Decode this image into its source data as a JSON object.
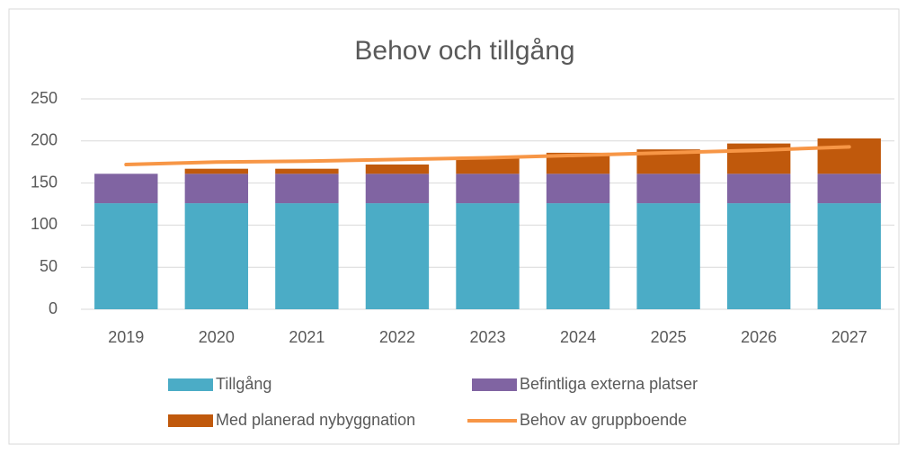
{
  "chart_data": {
    "type": "bar",
    "title": "Behov och tillgång",
    "categories": [
      "2019",
      "2020",
      "2021",
      "2022",
      "2023",
      "2024",
      "2025",
      "2026",
      "2027"
    ],
    "series": [
      {
        "name": "Tillgång",
        "type": "bar",
        "color": "#4bacc6",
        "values": [
          126,
          126,
          126,
          126,
          126,
          126,
          126,
          126,
          126
        ]
      },
      {
        "name": "Befintliga externa platser",
        "type": "bar",
        "color": "#8064a2",
        "values": [
          35,
          35,
          35,
          35,
          35,
          35,
          35,
          35,
          35
        ]
      },
      {
        "name": "Med planerad nybyggnation",
        "type": "bar",
        "color": "#c0590c",
        "values": [
          0,
          6,
          6,
          11,
          19,
          25,
          29,
          36,
          42
        ]
      },
      {
        "name": "Behov av gruppboende",
        "type": "line",
        "color": "#f79646",
        "values": [
          172,
          175,
          176,
          178,
          180,
          183,
          186,
          189,
          193
        ]
      }
    ],
    "stacked": true,
    "ylim": [
      0,
      250
    ],
    "yticks": [
      0,
      50,
      100,
      150,
      200,
      250
    ],
    "grid": true
  }
}
